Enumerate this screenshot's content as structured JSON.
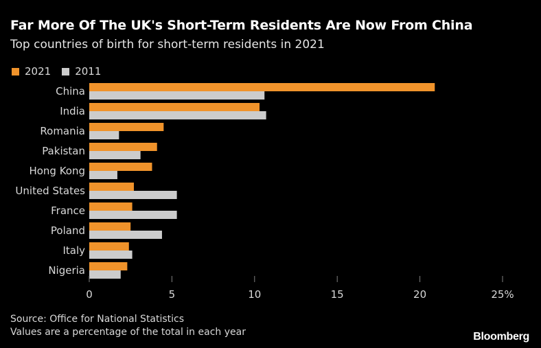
{
  "header": {
    "title": "Far More Of The UK's Short-Term Residents Are Now From China",
    "subtitle": "Top countries of birth for short-term residents in 2021"
  },
  "footer": {
    "source": "Source: Office for National Statistics",
    "note": "Values are a percentage of the total in each year",
    "brand": "Bloomberg"
  },
  "colors": {
    "background": "#000000",
    "series_2021": "#f0932b",
    "series_2011": "#cccccc",
    "gridline": "#808080",
    "text": "#d9d9d9"
  },
  "chart_data": {
    "type": "bar",
    "orientation": "horizontal",
    "categories": [
      "China",
      "India",
      "Romania",
      "Pakistan",
      "Hong Kong",
      "United States",
      "France",
      "Poland",
      "Italy",
      "Nigeria"
    ],
    "series": [
      {
        "name": "2021",
        "color": "#f0932b",
        "values": [
          20.9,
          10.3,
          4.5,
          4.1,
          3.8,
          2.7,
          2.6,
          2.5,
          2.4,
          2.3
        ]
      },
      {
        "name": "2011",
        "color": "#cccccc",
        "values": [
          10.6,
          10.7,
          1.8,
          3.1,
          1.7,
          5.3,
          5.3,
          4.4,
          2.6,
          1.9
        ]
      }
    ],
    "xlim": [
      0,
      25
    ],
    "xticks": [
      0,
      5,
      10,
      15,
      20,
      25
    ],
    "xtick_labels": [
      "0",
      "5",
      "10",
      "15",
      "20",
      "25%"
    ],
    "xlabel": "",
    "ylabel": "",
    "legend_position": "top-left",
    "grid": false
  }
}
